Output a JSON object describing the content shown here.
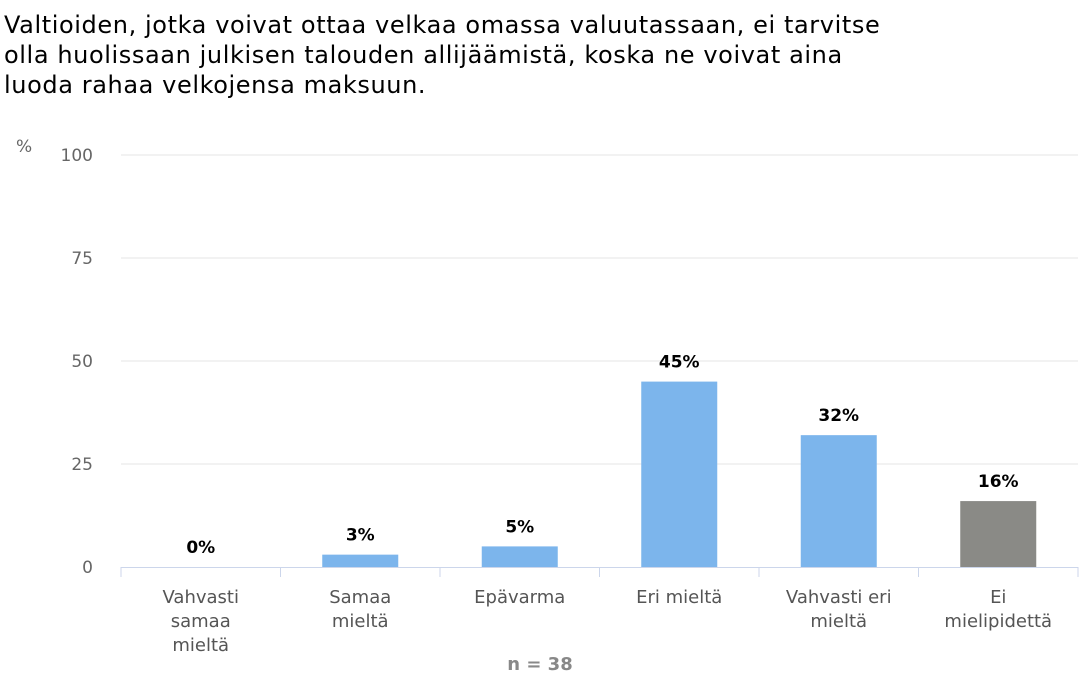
{
  "chart_data": {
    "type": "bar",
    "title": "Valtioiden, jotka voivat ottaa velkaa omassa valuutassaan, ei tarvitse olla huolissaan julkisen talouden allijäämistä, koska ne voivat aina luoda rahaa velkojensa maksuun.",
    "title_lines": [
      "Valtioiden, jotka voivat ottaa velkaa omassa valuutassaan, ei tarvitse",
      "olla huolissaan julkisen talouden allijäämistä, koska ne voivat aina",
      "luoda rahaa velkojensa maksuun."
    ],
    "ylabel": "%",
    "ylim": [
      0,
      100
    ],
    "yticks": [
      0,
      25,
      50,
      75,
      100
    ],
    "grid": true,
    "categories": [
      [
        "Vahvasti",
        "samaa",
        "mieltä"
      ],
      [
        "Samaa",
        "mieltä"
      ],
      [
        "Epävarma"
      ],
      [
        "Eri mieltä"
      ],
      [
        "Vahvasti eri",
        "mieltä"
      ],
      [
        "Ei",
        "mielipidettä"
      ]
    ],
    "values": [
      0,
      3,
      5,
      45,
      32,
      16
    ],
    "data_labels": [
      "0%",
      "3%",
      "5%",
      "45%",
      "32%",
      "16%"
    ],
    "colors": [
      "#7cb5ec",
      "#7cb5ec",
      "#7cb5ec",
      "#7cb5ec",
      "#7cb5ec",
      "#8a8a86"
    ],
    "note": "n = 38"
  }
}
